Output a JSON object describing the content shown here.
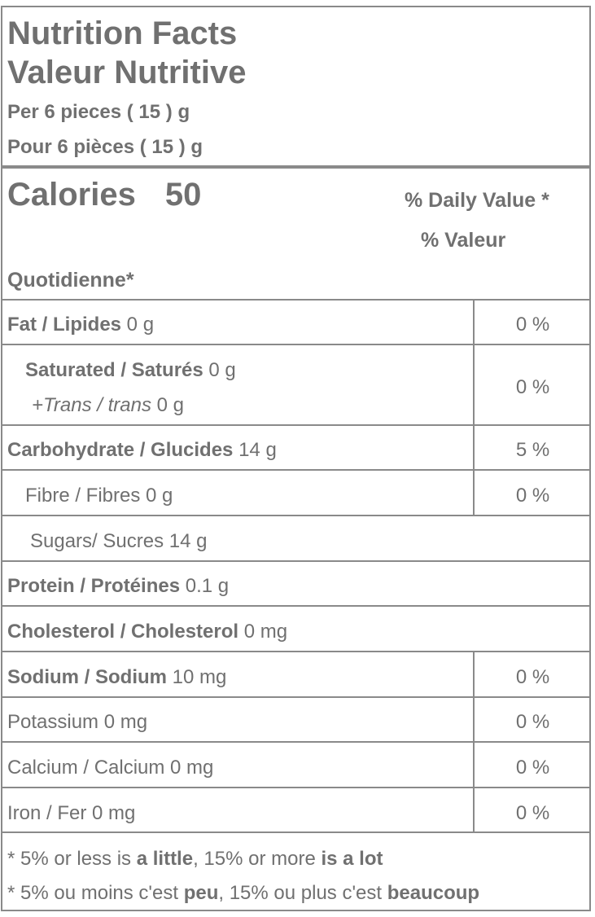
{
  "header": {
    "title_en": "Nutrition Facts",
    "title_fr": "Valeur Nutritive",
    "serving_en": "Per 6 pieces ( 15 ) g",
    "serving_fr": "Pour 6 pièces ( 15 ) g"
  },
  "calories": {
    "label": "Calories",
    "value": "50",
    "dv_line1": "% Daily Value *",
    "dv_line2": "% Valeur",
    "dv_line3": "Quotidienne*"
  },
  "nutrients": {
    "fat": {
      "label": "Fat / Lipides",
      "amount": " 0 g",
      "dv": "0 %"
    },
    "saturated": {
      "label": "Saturated / Saturés",
      "amount": " 0 g",
      "dv": "0 %"
    },
    "trans": {
      "label": "+Trans / trans",
      "amount": " 0 g"
    },
    "carbohydrate": {
      "label": "Carbohydrate / Glucides",
      "amount": " 14 g",
      "dv": "5 %"
    },
    "fibre": {
      "label": "Fibre / Fibres 0 g",
      "dv": "0 %"
    },
    "sugars": {
      "label": "Sugars/ Sucres 14 g"
    },
    "protein": {
      "label": "Protein / Protéines",
      "amount": " 0.1 g"
    },
    "cholesterol": {
      "label": "Cholesterol / Cholesterol",
      "amount": " 0 mg"
    },
    "sodium": {
      "label": "Sodium / Sodium",
      "amount": " 10 mg",
      "dv": "0 %"
    },
    "potassium": {
      "label": "Potassium 0 mg",
      "dv": "0 %"
    },
    "calcium": {
      "label": "Calcium / Calcium 0 mg",
      "dv": "0 %"
    },
    "iron": {
      "label": "Iron / Fer 0 mg",
      "dv": "0 %"
    }
  },
  "footnote": {
    "en_prefix": "* 5% or less is ",
    "en_bold1": "a little",
    "en_mid": ", 15% or more ",
    "en_bold2": "is a lot",
    "fr_prefix": "* 5% ou moins c'est ",
    "fr_bold1": "peu",
    "fr_mid": ", 15% ou plus c'est ",
    "fr_bold2": "beaucoup"
  }
}
